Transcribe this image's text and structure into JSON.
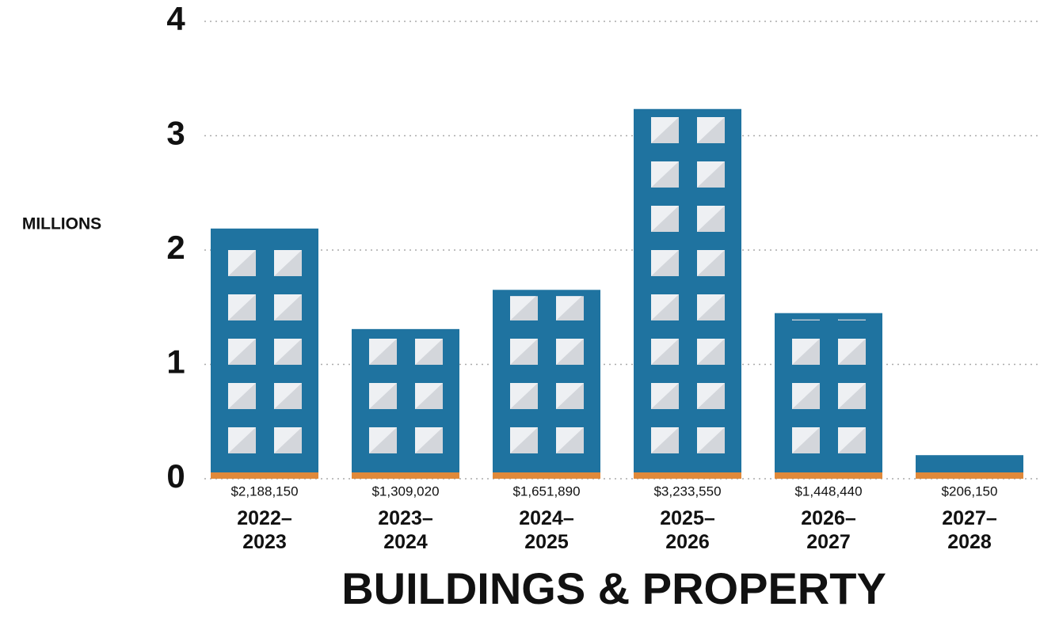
{
  "chart_data": {
    "type": "bar",
    "title": "BUILDINGS & PROPERTY",
    "y_label": "MILLIONS",
    "categories": [
      "2022–\n2023",
      "2023–\n2024",
      "2024–\n2025",
      "2025–\n2026",
      "2026–\n2027",
      "2027–\n2028"
    ],
    "values": [
      2.18815,
      1.30902,
      1.65189,
      3.23355,
      1.44844,
      0.20615
    ],
    "value_labels": [
      "$2,188,150",
      "$1,309,020",
      "$1,651,890",
      "$3,233,550",
      "$1,448,440",
      "$206,150"
    ],
    "color": "#1f73a0",
    "base_color": "#e0893a",
    "ylim": [
      0,
      4
    ],
    "yticks": [
      0,
      1,
      2,
      3,
      4
    ],
    "grid": true
  }
}
